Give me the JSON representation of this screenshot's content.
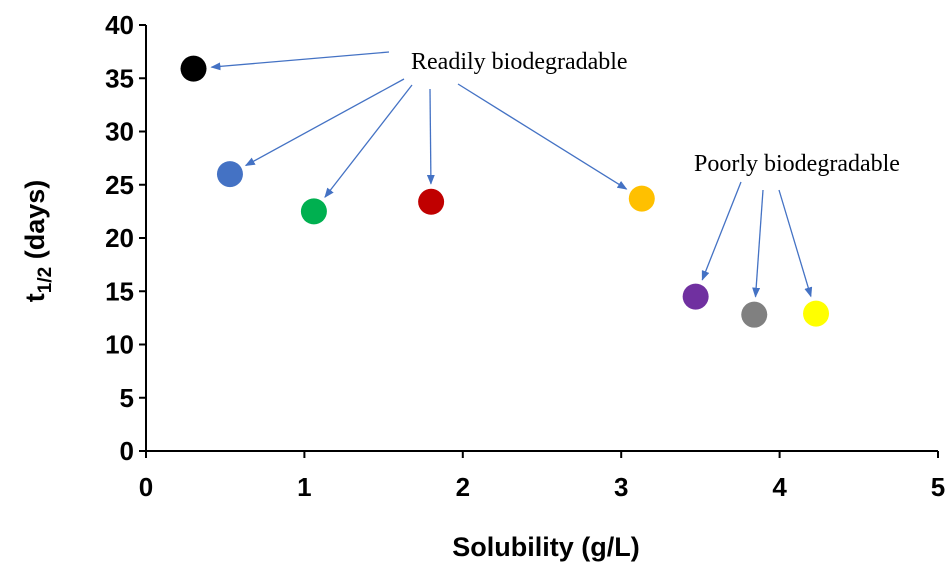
{
  "chart_data": {
    "type": "scatter",
    "title": "",
    "xlabel": "Solubility (g/L)",
    "ylabel": {
      "main": "t",
      "subscript": "1/2",
      "suffix": " (days)"
    },
    "xlim": [
      0,
      5
    ],
    "ylim": [
      0,
      40
    ],
    "x_ticks": [
      "0",
      "1",
      "2",
      "3",
      "4",
      "5"
    ],
    "y_ticks": [
      "0",
      "5",
      "10",
      "15",
      "20",
      "25",
      "30",
      "35",
      "40"
    ],
    "grid": false,
    "legend": "none",
    "points": [
      {
        "x": 0.3,
        "y": 35.9,
        "color": "#000000",
        "group": "readily"
      },
      {
        "x": 0.53,
        "y": 26.0,
        "color": "#4472C4",
        "group": "readily"
      },
      {
        "x": 1.06,
        "y": 22.5,
        "color": "#00B050",
        "group": "readily"
      },
      {
        "x": 1.8,
        "y": 23.4,
        "color": "#C00000",
        "group": "readily"
      },
      {
        "x": 3.13,
        "y": 23.7,
        "color": "#FFC000",
        "group": "readily"
      },
      {
        "x": 3.47,
        "y": 14.5,
        "color": "#7030A0",
        "group": "poorly"
      },
      {
        "x": 3.84,
        "y": 12.8,
        "color": "#808080",
        "group": "poorly"
      },
      {
        "x": 4.23,
        "y": 12.9,
        "color": "#FFFF00",
        "group": "poorly"
      }
    ],
    "annotations": [
      {
        "id": "readily",
        "text": "Readily biodegradable"
      },
      {
        "id": "poorly",
        "text": "Poorly biodegradable"
      }
    ],
    "arrow_color": "#4472C4"
  }
}
